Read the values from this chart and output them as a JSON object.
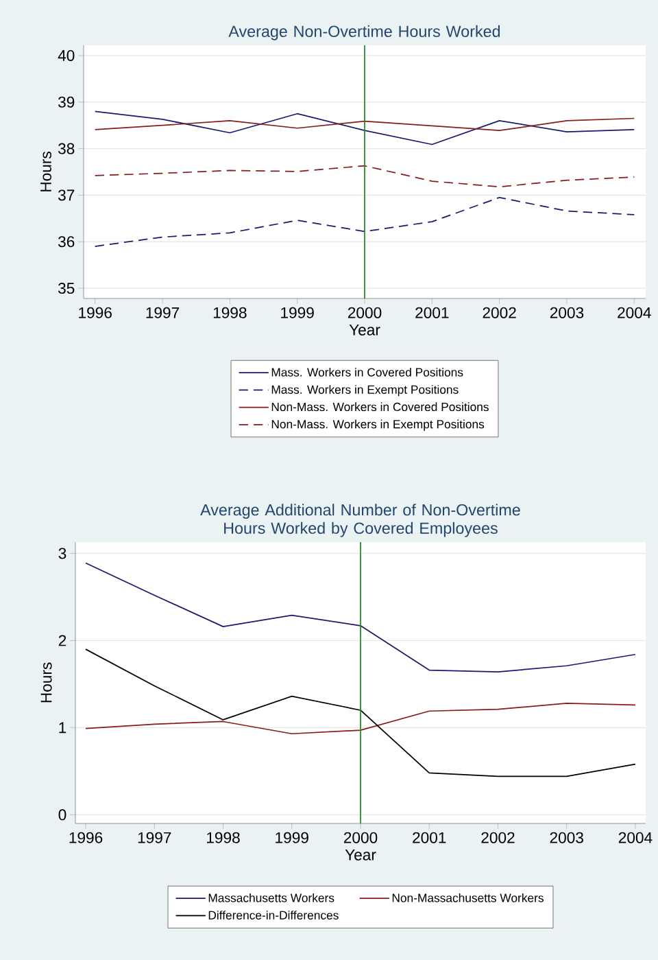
{
  "chart_data": [
    {
      "type": "line",
      "title": "Average Non-Overtime Hours Worked",
      "xlabel": "Year",
      "ylabel": "Hours",
      "x": [
        1996,
        1997,
        1998,
        1999,
        2000,
        2001,
        2002,
        2003,
        2004
      ],
      "series": [
        {
          "name": "Mass. Workers in Covered Positions",
          "color": "#1a1a6e",
          "line_style": "solid",
          "values": [
            38.8,
            38.63,
            38.34,
            38.75,
            38.39,
            38.09,
            38.6,
            38.36,
            38.41
          ]
        },
        {
          "name": "Mass. Workers in Exempt Positions",
          "color": "#1a1a6e",
          "line_style": "dashed",
          "values": [
            35.9,
            36.1,
            36.19,
            36.46,
            36.22,
            36.43,
            36.95,
            36.66,
            36.58
          ]
        },
        {
          "name": "Non-Mass. Workers in Covered Positions",
          "color": "#8b1a1a",
          "line_style": "solid",
          "values": [
            38.41,
            38.5,
            38.6,
            38.44,
            38.59,
            38.49,
            38.39,
            38.6,
            38.65
          ]
        },
        {
          "name": "Non-Mass. Workers in Exempt Positions",
          "color": "#8b1a1a",
          "line_style": "dashed",
          "values": [
            37.42,
            37.47,
            37.53,
            37.51,
            37.63,
            37.3,
            37.18,
            37.32,
            37.39
          ]
        }
      ],
      "xlim": [
        1995.83,
        2004.17
      ],
      "xticks": [
        1996,
        1997,
        1998,
        1999,
        2000,
        2001,
        2002,
        2003,
        2004
      ],
      "ylim": [
        34.78,
        40.22
      ],
      "yticks": [
        35,
        36,
        37,
        38,
        39,
        40
      ],
      "ref_lines": [
        {
          "axis": "x",
          "value": 2000,
          "color": "#1f8a1f"
        }
      ],
      "grid": "y",
      "legend": "bottom"
    },
    {
      "type": "line",
      "title": "Average Additional Number of Non-Overtime Hours Worked by Covered Employees",
      "xlabel": "Year",
      "ylabel": "Hours",
      "x": [
        1996,
        1997,
        1998,
        1999,
        2000,
        2001,
        2002,
        2003,
        2004
      ],
      "series": [
        {
          "name": "Massachusetts Workers",
          "color": "#1a1a6e",
          "values": [
            2.89,
            2.52,
            2.16,
            2.29,
            2.17,
            1.66,
            1.64,
            1.71,
            1.84
          ]
        },
        {
          "name": "Non-Massachusetts Workers",
          "color": "#8b1a1a",
          "values": [
            0.99,
            1.04,
            1.07,
            0.93,
            0.97,
            1.19,
            1.21,
            1.28,
            1.26
          ]
        },
        {
          "name": "Difference-in-Differences",
          "color": "#000000",
          "values": [
            1.9,
            1.48,
            1.09,
            1.36,
            1.2,
            0.48,
            0.44,
            0.44,
            0.58
          ]
        }
      ],
      "xlim": [
        1995.85,
        2004.15
      ],
      "xticks": [
        1996,
        1997,
        1998,
        1999,
        2000,
        2001,
        2002,
        2003,
        2004
      ],
      "ylim": [
        -0.1,
        3.13
      ],
      "yticks": [
        0,
        1,
        2,
        3
      ],
      "ref_lines": [
        {
          "axis": "x",
          "value": 2000,
          "color": "#1f8a1f"
        }
      ],
      "grid": "y",
      "legend": "bottom"
    }
  ]
}
